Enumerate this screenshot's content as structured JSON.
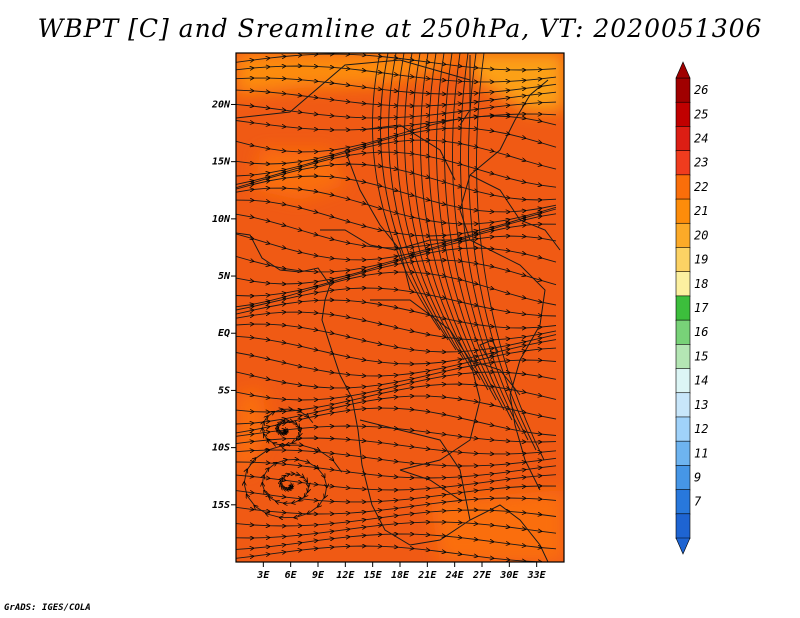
{
  "title": "WBPT [C] and Sreamline at 250hPa, VT: 2020051306",
  "footer": "GrADS: IGES/COLA",
  "map": {
    "lon_range": [
      0,
      36
    ],
    "lat_range": [
      -20,
      24.5
    ],
    "lat_ticks": [
      "20N",
      "15N",
      "10N",
      "5N",
      "EQ",
      "5S",
      "10S",
      "15S"
    ],
    "lat_tick_values": [
      20,
      15,
      10,
      5,
      0,
      -5,
      -10,
      -15
    ],
    "lon_ticks": [
      "3E",
      "6E",
      "9E",
      "12E",
      "15E",
      "18E",
      "21E",
      "24E",
      "27E",
      "30E",
      "33E"
    ],
    "lon_tick_values": [
      3,
      6,
      9,
      12,
      15,
      18,
      21,
      24,
      27,
      30,
      33
    ],
    "fill_colors": {
      "dominant": "#f05a14",
      "orange_23": "#fa6e0a",
      "orange_22": "#fd8c0a",
      "orange_21": "#fca018"
    }
  },
  "colorbar": {
    "labels": [
      "26",
      "25",
      "24",
      "23",
      "22",
      "21",
      "20",
      "19",
      "18",
      "17",
      "16",
      "15",
      "14",
      "13",
      "12",
      "11",
      "9",
      "7"
    ],
    "colors": [
      "#a00000",
      "#c00000",
      "#dc1e14",
      "#f03c1e",
      "#fa6e0a",
      "#fd8c0a",
      "#fcaa28",
      "#fcd264",
      "#fcf0a0",
      "#3cbe3c",
      "#78d278",
      "#b4e6b4",
      "#dcf5f5",
      "#c8e6fa",
      "#a0d2fa",
      "#6eb4f0",
      "#4696e6",
      "#2878dc",
      "#1e64d2"
    ],
    "top_triangle_color": "#a00000",
    "bottom_triangle_color": "#1e64d2"
  }
}
